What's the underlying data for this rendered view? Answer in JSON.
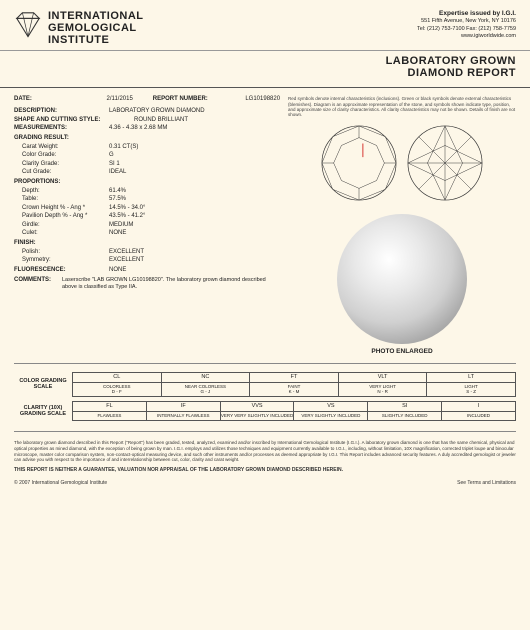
{
  "header": {
    "org_line1": "INTERNATIONAL",
    "org_line2": "GEMOLOGICAL",
    "org_line3": "INSTITUTE",
    "expertise": "Expertise issued by I.G.I.",
    "addr": "551 Fifth Avenue, New York, NY 10176",
    "tel": "Tel: (212) 753-7100  Fax: (212) 758-7759",
    "web": "www.igiworldwide.com"
  },
  "title": {
    "l1": "LABORATORY GROWN",
    "l2": "DIAMOND REPORT"
  },
  "fields": {
    "date_lbl": "DATE:",
    "date": "2/11/2015",
    "rn_lbl": "REPORT NUMBER:",
    "rn": "LG10198820",
    "desc_lbl": "DESCRIPTION:",
    "desc": "LABORATORY GROWN DIAMOND",
    "shape_lbl": "SHAPE AND CUTTING STYLE:",
    "shape": "ROUND BRILLIANT",
    "meas_lbl": "MEASUREMENTS:",
    "meas": "4.36 - 4.38 x 2.68 MM",
    "grade_lbl": "GRADING RESULT:",
    "carat_lbl": "Carat Weight:",
    "carat": "0.31 CT(S)",
    "color_lbl": "Color Grade:",
    "color": "G",
    "clarity_lbl": "Clarity Grade:",
    "clarity": "SI 1",
    "cut_lbl": "Cut Grade:",
    "cut": "IDEAL",
    "prop_lbl": "PROPORTIONS:",
    "depth_lbl": "Depth:",
    "depth": "61.4%",
    "table_lbl": "Table:",
    "table": "57.5%",
    "crown_lbl": "Crown Height % - Ang *",
    "crown": "14.5% - 34.0°",
    "pav_lbl": "Pavilion Depth % - Ang *",
    "pav": "43.5% - 41.2°",
    "girdle_lbl": "Girdle:",
    "girdle": "MEDIUM",
    "culet_lbl": "Culet:",
    "culet": "NONE",
    "finish_lbl": "FINISH:",
    "polish_lbl": "Polish:",
    "polish": "EXCELLENT",
    "sym_lbl": "Symmetry:",
    "sym": "EXCELLENT",
    "fluor_lbl": "FLUORESCENCE:",
    "fluor": "NONE",
    "comm_lbl": "COMMENTS:",
    "comm": "Laserscribe \"LAB GROWN LG10198820\". The laboratory grown diamond described above is classified as Type IIA."
  },
  "note": "Red symbols denote internal characteristics (inclusions). Green or black symbols denote external characteristics (blemishes). Diagram is an approximate representation of the stone, and symbols shown indicate type, position, and approximate size of clarity characteristics. All clarity characteristics may not be shown. Details of finish are not shown.",
  "photo_lbl": "PHOTO ENLARGED",
  "color_scale": {
    "title": "COLOR GRADING SCALE",
    "hdrs": [
      "CL",
      "NC",
      "FT",
      "VLT",
      "LT"
    ],
    "subs": [
      "COLORLESS\nD - F",
      "NEAR COLORLESS\nG - J",
      "FAINT\nK - M",
      "VERY LIGHT\nN - R",
      "LIGHT\nS - Z"
    ]
  },
  "clarity_scale": {
    "title": "CLARITY (10X) GRADING SCALE",
    "hdrs": [
      "FL",
      "IF",
      "VVS",
      "VS",
      "SI",
      "I"
    ],
    "subs": [
      "FLAWLESS",
      "INTERNALLY FLAWLESS",
      "VERY VERY SLIGHTLY INCLUDED",
      "VERY SLIGHTLY INCLUDED",
      "SLIGHTLY INCLUDED",
      "INCLUDED"
    ]
  },
  "footer": {
    "disc": "The laboratory grown diamond described in this Report (\"Report\") has been graded, tested, analyzed, examined and/or inscribed by International Gemological Institute (I.G.I.). A laboratory grown diamond is one that has the same chemical, physical and optical properties as mined diamond, with the exception of being grown by man. I.G.I. employs and utilizes those techniques and equipment currently available to I.G.I., including, without limitation, 10X magnification, corrected triplet loupe and binocular microscope, master color comparison system, non-contact-optical measuring device, and such other instruments and/or processes as deemed appropriate by I.G.I. This Report includes advanced security features. A duly accredited gemologist or jeweler can advise you with respect to the importance of and interrelationship between cut, color, clarity and carat weight.",
    "caps": "THIS REPORT IS NEITHER A GUARANTEE, VALUATION NOR APPRAISAL OF THE LABORATORY GROWN DIAMOND DESCRIBED HEREIN.",
    "copy": "© 2007 International Gemological Institute",
    "terms": "See Terms and Limitations"
  },
  "colors": {
    "bg": "#fdf7e8",
    "accent": "#333"
  }
}
